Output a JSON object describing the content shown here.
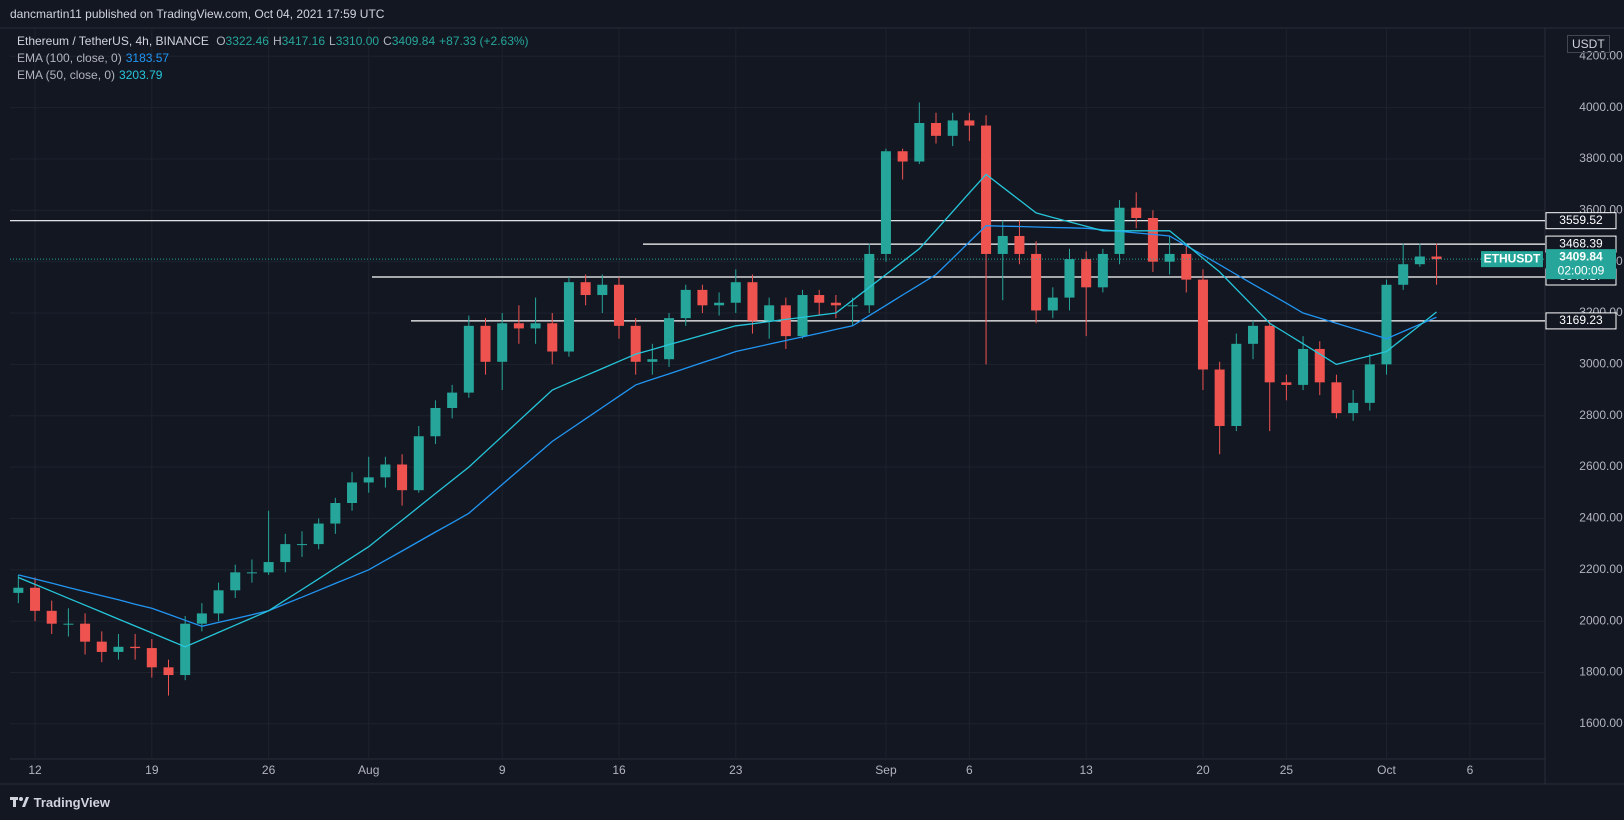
{
  "header": {
    "publisher": "dancmartin11 published on TradingView.com, Oct 04, 2021 17:59 UTC",
    "brand": "TradingView"
  },
  "chart_data": {
    "type": "candlestick",
    "symbol": "Ethereum / TetherUS, 4h, BINANCE",
    "symbol_tag": "ETHUSDT",
    "currency": "USDT",
    "countdown": "02:00:09",
    "ohlc_legend": [
      {
        "label": "O",
        "value": "3322.46"
      },
      {
        "label": "H",
        "value": "3417.16"
      },
      {
        "label": "L",
        "value": "3310.00"
      },
      {
        "label": "C"
      }
    ],
    "change": "+87.33 (+2.63%)",
    "up_color": "#26a69a",
    "down_color": "#ef5350",
    "grid": true,
    "categories": [
      null,
      "12",
      null,
      null,
      null,
      null,
      null,
      null,
      "19",
      null,
      null,
      null,
      null,
      null,
      null,
      "26",
      null,
      null,
      null,
      null,
      null,
      "Aug",
      null,
      null,
      null,
      null,
      null,
      null,
      null,
      "9",
      null,
      null,
      null,
      null,
      null,
      null,
      "16",
      null,
      null,
      null,
      null,
      null,
      null,
      "23",
      null,
      null,
      null,
      null,
      null,
      null,
      null,
      null,
      "Sep",
      null,
      null,
      null,
      null,
      "6",
      null,
      null,
      null,
      null,
      null,
      null,
      "13",
      null,
      null,
      null,
      null,
      null,
      null,
      "20",
      null,
      null,
      null,
      null,
      "25",
      null,
      null,
      null,
      null,
      null,
      "Oct",
      null,
      null,
      null,
      null,
      "6",
      null,
      null,
      null,
      null
    ],
    "open": [
      2110,
      2130,
      2040,
      1990,
      1990,
      1920,
      1880,
      1900,
      1895,
      1820,
      1790,
      1990,
      2030,
      2120,
      2190,
      2190,
      2230,
      2300,
      2300,
      2380,
      2460,
      2540,
      2560,
      2610,
      2510,
      2720,
      2830,
      2890,
      3150,
      3010,
      3160,
      3140,
      3160,
      3050,
      3320,
      3270,
      3310,
      3150,
      3010,
      3020,
      3180,
      3290,
      3230,
      3240,
      3320,
      3170,
      3230,
      3110,
      3270,
      3240,
      3230,
      3230,
      3430,
      3830,
      3790,
      3940,
      3890,
      3950,
      3930,
      3430,
      3500,
      3430,
      3210,
      3260,
      3410,
      3300,
      3430,
      3610,
      3570,
      3400,
      3430,
      3330,
      2980,
      2760,
      3080,
      3150,
      2930,
      2920,
      3060,
      2930,
      2810,
      2850,
      3000,
      3310,
      3390,
      3420,
      null,
      null,
      null,
      null,
      null,
      null
    ],
    "high": [
      2180,
      2170,
      2080,
      2050,
      2030,
      1960,
      1950,
      1950,
      1930,
      1850,
      2020,
      2070,
      2150,
      2220,
      2240,
      2430,
      2340,
      2350,
      2400,
      2480,
      2580,
      2640,
      2640,
      2650,
      2760,
      2860,
      2920,
      3190,
      3180,
      3200,
      3230,
      3260,
      3200,
      3340,
      3350,
      3350,
      3340,
      3180,
      3080,
      3200,
      3310,
      3310,
      3280,
      3370,
      3350,
      3260,
      3260,
      3290,
      3290,
      3270,
      3260,
      3470,
      3840,
      3840,
      4020,
      3980,
      3980,
      3980,
      3970,
      3560,
      3560,
      3480,
      3300,
      3450,
      3440,
      3450,
      3640,
      3670,
      3600,
      3500,
      3460,
      3370,
      3010,
      3120,
      3170,
      3170,
      2960,
      3110,
      3090,
      2960,
      2900,
      3040,
      3330,
      3470,
      3470,
      3470,
      null,
      null,
      null,
      null,
      null,
      null
    ],
    "low": [
      2070,
      2000,
      1950,
      1940,
      1870,
      1840,
      1850,
      1850,
      1780,
      1710,
      1770,
      1960,
      2000,
      2090,
      2150,
      2180,
      2190,
      2250,
      2280,
      2340,
      2430,
      2500,
      2520,
      2450,
      2500,
      2690,
      2790,
      2870,
      2960,
      2900,
      3080,
      3080,
      3000,
      3030,
      3230,
      3200,
      3100,
      2960,
      2960,
      2990,
      3150,
      3200,
      3190,
      3200,
      3120,
      3100,
      3060,
      3100,
      3190,
      3180,
      3150,
      3200,
      3400,
      3720,
      3780,
      3860,
      3850,
      3870,
      3000,
      3250,
      3390,
      3160,
      3180,
      3210,
      3110,
      3280,
      3390,
      3530,
      3360,
      3350,
      3280,
      2900,
      2650,
      2740,
      3020,
      2740,
      2860,
      2900,
      2880,
      2790,
      2780,
      2820,
      2960,
      3290,
      3380,
      3310,
      null,
      null,
      null,
      null,
      null,
      null
    ],
    "close": [
      2130,
      2040,
      1990,
      1990,
      1920,
      1880,
      1900,
      1895,
      1820,
      1790,
      1990,
      2030,
      2120,
      2190,
      2190,
      2230,
      2300,
      2300,
      2380,
      2460,
      2540,
      2560,
      2610,
      2510,
      2720,
      2830,
      2890,
      3150,
      3010,
      3160,
      3140,
      3160,
      3050,
      3320,
      3270,
      3310,
      3150,
      3010,
      3020,
      3180,
      3290,
      3230,
      3240,
      3320,
      3170,
      3230,
      3110,
      3270,
      3240,
      3230,
      3230,
      3430,
      3830,
      3790,
      3940,
      3890,
      3950,
      3930,
      3430,
      3500,
      3430,
      3210,
      3260,
      3410,
      3300,
      3430,
      3610,
      3570,
      3400,
      3430,
      3330,
      2980,
      2760,
      3080,
      3150,
      2930,
      2920,
      3060,
      2930,
      2810,
      2850,
      3000,
      3310,
      3390,
      3420,
      3409.84,
      null,
      null,
      null,
      null,
      null,
      null
    ],
    "indicators": [
      {
        "name": "EMA (100, close, 0)",
        "color": "#2196f3",
        "values": [
          2180,
          2164,
          2148,
          2131,
          2115,
          2099,
          2083,
          2066,
          2050,
          2027,
          2003,
          1980,
          1995,
          2010,
          2025,
          2040,
          2067,
          2093,
          2120,
          2147,
          2173,
          2200,
          2237,
          2273,
          2310,
          2347,
          2383,
          2420,
          2476,
          2532,
          2588,
          2644,
          2700,
          2744,
          2788,
          2832,
          2876,
          2920,
          2942,
          2963,
          2985,
          3007,
          3028,
          3050,
          3064,
          3079,
          3093,
          3107,
          3121,
          3136,
          3150,
          3190,
          3230,
          3270,
          3310,
          3350,
          3413,
          3477,
          3540,
          3538,
          3537,
          3535,
          3533,
          3532,
          3530,
          3524,
          3518,
          3512,
          3506,
          3500,
          3462,
          3425,
          3388,
          3350,
          3312,
          3275,
          3238,
          3200,
          3180,
          3160,
          3140,
          3120,
          3100,
          3128,
          3156,
          3183.57,
          null,
          null,
          null,
          null,
          null,
          null
        ]
      },
      {
        "name": "EMA (50, close, 0)",
        "color": "#26c6da",
        "values": [
          2170,
          2143,
          2116,
          2089,
          2062,
          2035,
          2008,
          1981,
          1954,
          1927,
          1900,
          1928,
          1956,
          1984,
          2012,
          2040,
          2082,
          2123,
          2165,
          2207,
          2248,
          2290,
          2342,
          2393,
          2445,
          2497,
          2548,
          2600,
          2660,
          2720,
          2780,
          2840,
          2900,
          2928,
          2956,
          2984,
          3012,
          3040,
          3058,
          3077,
          3095,
          3113,
          3132,
          3150,
          3158,
          3167,
          3175,
          3183,
          3192,
          3200,
          3250,
          3300,
          3350,
          3400,
          3450,
          3522,
          3595,
          3668,
          3740,
          3690,
          3640,
          3590,
          3572,
          3555,
          3538,
          3520,
          3520,
          3520,
          3520,
          3520,
          3467,
          3413,
          3360,
          3293,
          3227,
          3160,
          3120,
          3080,
          3040,
          3000,
          3017,
          3033,
          3050,
          3101,
          3152,
          3203.79,
          null,
          null,
          null,
          null,
          null,
          null
        ]
      }
    ],
    "levels": [
      3559.52,
      3468.39,
      3340.17,
      3169.23
    ],
    "ylim": [
      1463,
      4310
    ],
    "yticks": [
      {
        "value": 1600,
        "label": "1600.00"
      },
      {
        "value": 1800,
        "label": "1800.00"
      },
      {
        "value": 2000,
        "label": "2000.00"
      },
      {
        "value": 2200,
        "label": "2200.00"
      },
      {
        "value": 2400,
        "label": "2400.00"
      },
      {
        "value": 2600,
        "label": "2600.00"
      },
      {
        "value": 2800,
        "label": "2800.00"
      },
      {
        "value": 3000,
        "label": "3000.00"
      },
      {
        "value": 3200,
        "label": "3200.00"
      },
      {
        "value": 3400,
        "label": "3400.00"
      },
      {
        "value": 3600,
        "label": "3600.00"
      },
      {
        "value": 3800,
        "label": "3800.00"
      },
      {
        "value": 4000,
        "label": "4000.00"
      },
      {
        "value": 4200,
        "label": "4200.00"
      }
    ]
  }
}
